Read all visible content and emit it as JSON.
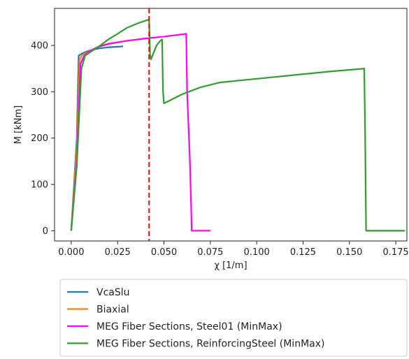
{
  "chart_data": {
    "type": "line",
    "title": "",
    "xlabel": "χ [1/m]",
    "ylabel": "M [kNm]",
    "xlim": [
      -0.009,
      0.181
    ],
    "ylim": [
      -22,
      480
    ],
    "xticks": [
      0.0,
      0.025,
      0.05,
      0.075,
      0.1,
      0.125,
      0.15,
      0.175
    ],
    "xtick_labels": [
      "0.000",
      "0.025",
      "0.050",
      "0.075",
      "0.100",
      "0.125",
      "0.150",
      "0.175"
    ],
    "yticks": [
      0,
      100,
      200,
      300,
      400
    ],
    "ytick_labels": [
      "0",
      "100",
      "200",
      "300",
      "400"
    ],
    "grid": false,
    "legend_position": "below plot",
    "vertical_line": {
      "x": 0.042,
      "color": "#ff0000",
      "style": "dashed"
    },
    "series": [
      {
        "name": "VcaSlu",
        "color": "#1f77b4",
        "points": [
          [
            0.0,
            0
          ],
          [
            0.003,
            200
          ],
          [
            0.004,
            378
          ],
          [
            0.006,
            383
          ],
          [
            0.009,
            388
          ],
          [
            0.014,
            393
          ],
          [
            0.02,
            396
          ],
          [
            0.028,
            398
          ]
        ]
      },
      {
        "name": "Biaxial",
        "color": "#ff7f0e",
        "points": [
          [
            0.0,
            0
          ],
          [
            0.003,
            180
          ],
          [
            0.0045,
            370
          ],
          [
            0.006,
            380
          ],
          [
            0.01,
            388
          ],
          [
            0.015,
            398
          ],
          [
            0.02,
            404
          ],
          [
            0.03,
            410
          ],
          [
            0.043,
            416
          ]
        ]
      },
      {
        "name": "MEG Fiber Sections, Steel01 (MinMax)",
        "color": "#ff00ff",
        "points": [
          [
            0.0,
            0
          ],
          [
            0.003,
            150
          ],
          [
            0.005,
            360
          ],
          [
            0.007,
            378
          ],
          [
            0.01,
            388
          ],
          [
            0.014,
            396
          ],
          [
            0.02,
            403
          ],
          [
            0.03,
            410
          ],
          [
            0.04,
            415
          ],
          [
            0.05,
            419
          ],
          [
            0.062,
            425
          ],
          [
            0.0625,
            300
          ],
          [
            0.064,
            150
          ],
          [
            0.065,
            0
          ],
          [
            0.075,
            0
          ]
        ]
      },
      {
        "name": "MEG Fiber Sections, ReinforcingSteel (MinMax)",
        "color": "#2ca02c",
        "points": [
          [
            0.0,
            0
          ],
          [
            0.003,
            140
          ],
          [
            0.0055,
            350
          ],
          [
            0.0075,
            378
          ],
          [
            0.01,
            385
          ],
          [
            0.015,
            398
          ],
          [
            0.02,
            413
          ],
          [
            0.025,
            425
          ],
          [
            0.03,
            438
          ],
          [
            0.036,
            448
          ],
          [
            0.042,
            456
          ],
          [
            0.0425,
            380
          ],
          [
            0.043,
            370
          ],
          [
            0.044,
            380
          ],
          [
            0.046,
            400
          ],
          [
            0.048,
            410
          ],
          [
            0.049,
            413
          ],
          [
            0.0495,
            300
          ],
          [
            0.05,
            275
          ],
          [
            0.055,
            285
          ],
          [
            0.06,
            295
          ],
          [
            0.07,
            310
          ],
          [
            0.08,
            320
          ],
          [
            0.1,
            328
          ],
          [
            0.12,
            336
          ],
          [
            0.14,
            344
          ],
          [
            0.158,
            350
          ],
          [
            0.1585,
            200
          ],
          [
            0.159,
            0
          ],
          [
            0.18,
            0
          ]
        ]
      }
    ]
  }
}
